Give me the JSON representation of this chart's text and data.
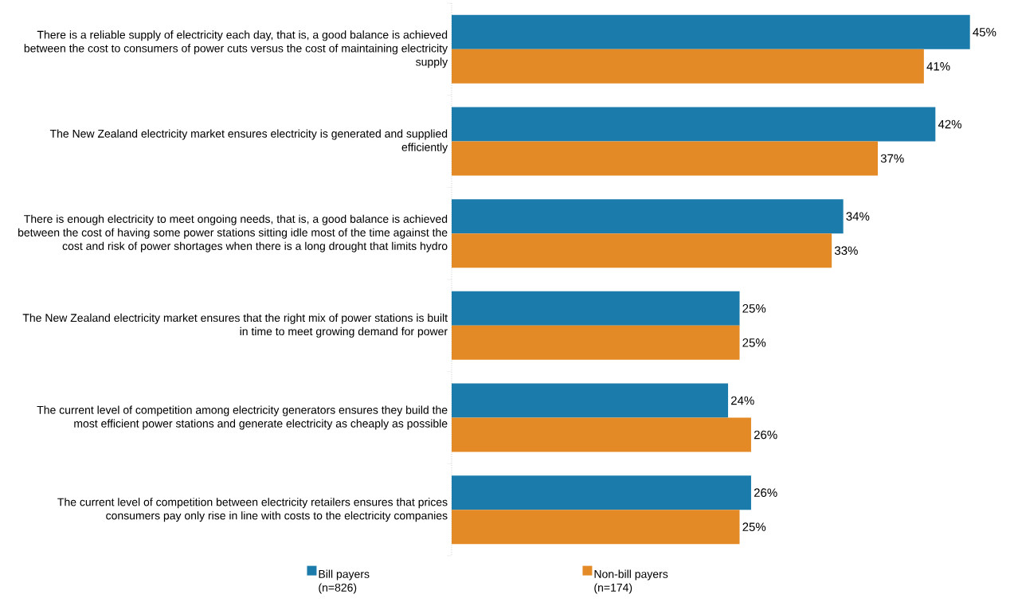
{
  "chart_data": {
    "type": "bar",
    "orientation": "horizontal",
    "legend": "bottom",
    "categories": [
      "There is a reliable supply of electricity each day, that is, a good balance is achieved between the cost to consumers of power cuts versus the cost of maintaining electricity supply",
      "The New Zealand electricity market ensures electricity is generated and supplied efficiently",
      "There is enough electricity to meet ongoing needs, that is, a good balance is achieved between the cost of having some power stations sitting idle most of the time against the cost and risk of power shortages when there is a long drought that limits hydro",
      "The New Zealand electricity market ensures that the right mix of power stations is built in time to meet growing demand for power",
      "The current level of competition among electricity generators ensures they build the most efficient power stations and generate electricity as cheaply as possible",
      "The current level of competition between electricity retailers ensures that prices consumers pay only rise in line with costs to the electricity companies"
    ],
    "series": [
      {
        "name": "Bill payers (n=826)",
        "color": "#1b7baa",
        "values": [
          45,
          42,
          34,
          25,
          24,
          26
        ],
        "value_labels": [
          "45%",
          "42%",
          "34%",
          "25%",
          "24%",
          "26%"
        ]
      },
      {
        "name": "Non-bill payers (n=174)",
        "color": "#e38a27",
        "values": [
          41,
          37,
          33,
          25,
          26,
          25
        ],
        "value_labels": [
          "41%",
          "37%",
          "33%",
          "25%",
          "26%",
          "25%"
        ]
      }
    ]
  }
}
